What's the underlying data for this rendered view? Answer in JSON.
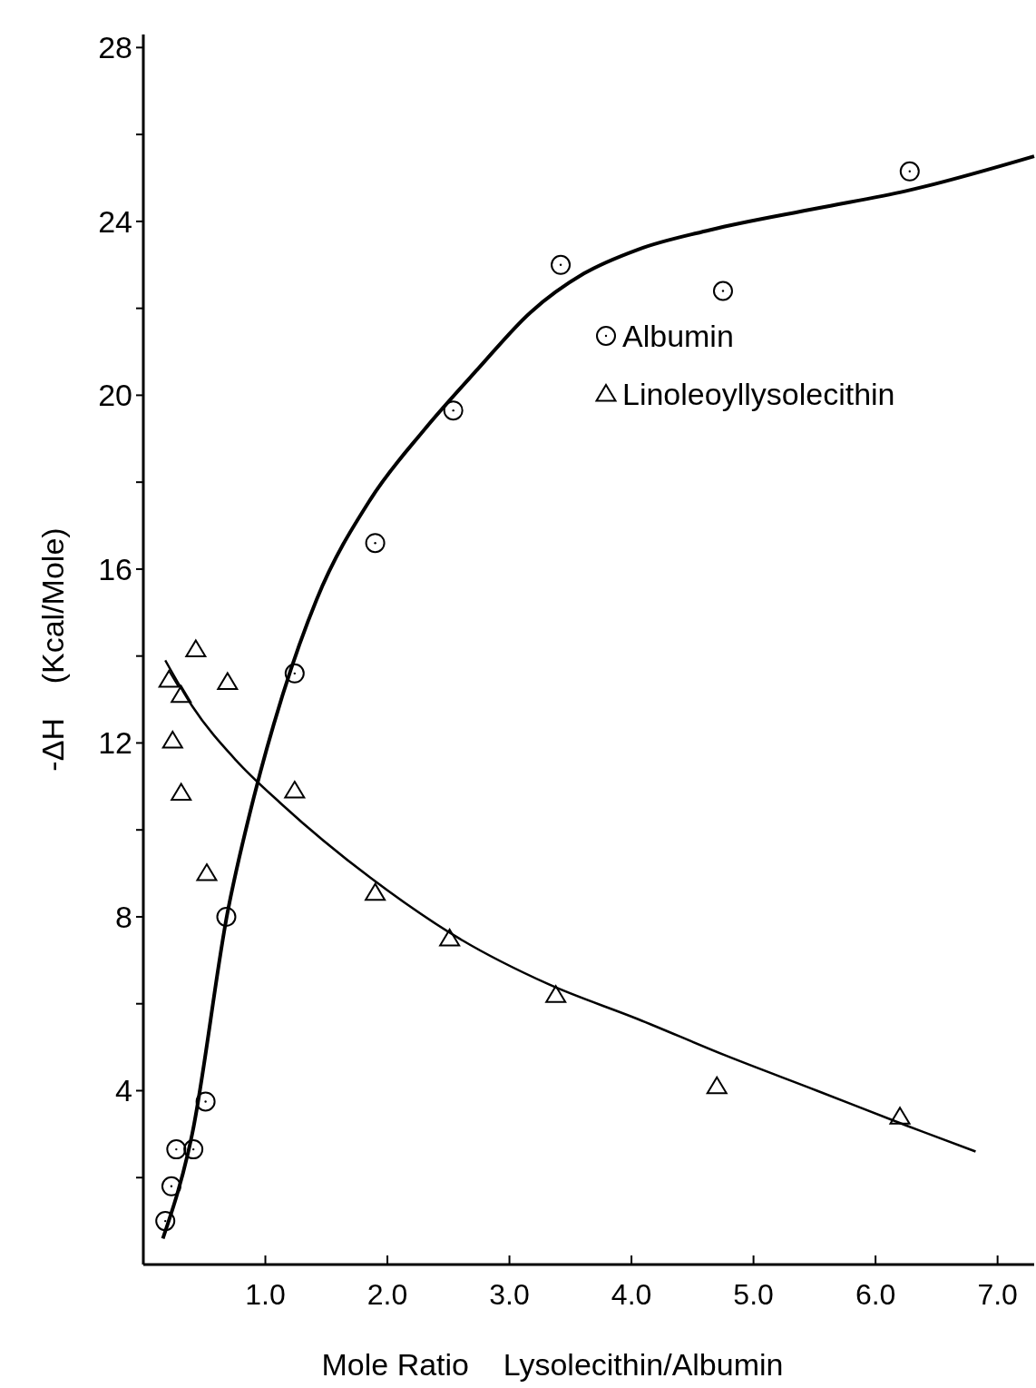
{
  "chart_data": {
    "type": "scatter",
    "xlabel": "Mole Ratio    Lysolecithin/Albumin",
    "ylabel": "-ΔH    (Kcal/Mole)",
    "xlim": [
      0,
      7.3
    ],
    "ylim": [
      0,
      28.3
    ],
    "xticks": [
      {
        "value": 1,
        "label": "1.0"
      },
      {
        "value": 2,
        "label": "2.0"
      },
      {
        "value": 3,
        "label": "3.0"
      },
      {
        "value": 4,
        "label": "4.0"
      },
      {
        "value": 5,
        "label": "5.0"
      },
      {
        "value": 6,
        "label": "6.0"
      },
      {
        "value": 7,
        "label": "7.0"
      }
    ],
    "yticks": [
      {
        "value": 2,
        "label": null
      },
      4,
      {
        "value": 6,
        "label": null
      },
      8,
      {
        "value": 10,
        "label": null
      },
      12,
      {
        "value": 14,
        "label": null
      },
      16,
      {
        "value": 18,
        "label": null
      },
      20,
      {
        "value": 22,
        "label": null
      },
      24,
      {
        "value": 26,
        "label": null
      },
      28
    ],
    "grid": false,
    "legend": "top right",
    "series": [
      {
        "name": "Albumin",
        "color": "#000000",
        "marker": "circle",
        "x": [
          0.18,
          0.23,
          0.27,
          0.41,
          0.51,
          0.68,
          1.24,
          1.9,
          2.54,
          3.42,
          4.75,
          6.28
        ],
        "values": [
          1.0,
          1.8,
          2.65,
          2.65,
          3.75,
          8.0,
          13.6,
          16.6,
          19.65,
          23.0,
          22.4,
          25.15
        ]
      },
      {
        "name": "Linoleoyllysolecithin",
        "color": "#000000",
        "marker": "triangle",
        "x": [
          0.21,
          0.43,
          0.31,
          0.24,
          0.31,
          0.52,
          0.69,
          1.24,
          1.9,
          2.51,
          3.38,
          4.7,
          6.2
        ],
        "values": [
          13.45,
          14.15,
          13.1,
          12.05,
          10.85,
          9.0,
          13.4,
          10.9,
          8.55,
          7.5,
          6.2,
          4.1,
          3.4
        ]
      },
      {
        "type": "line",
        "color": "#000000",
        "line_style": "solid",
        "x": [
          0.16,
          0.4,
          0.69,
          0.91,
          1.13,
          1.42,
          1.86,
          2.3,
          2.74,
          3.17,
          3.61,
          4.05,
          4.64,
          5.52,
          6.25,
          7.3
        ],
        "values": [
          0.6,
          3.0,
          8.1,
          10.8,
          13.0,
          15.3,
          17.6,
          19.2,
          20.6,
          21.9,
          22.8,
          23.35,
          23.8,
          24.3,
          24.7,
          25.5
        ]
      },
      {
        "type": "line",
        "color": "#000000",
        "line_style": "solid",
        "x": [
          0.18,
          0.4,
          0.76,
          1.13,
          1.86,
          2.59,
          3.32,
          4.05,
          4.78,
          5.52,
          6.25,
          6.82
        ],
        "values": [
          13.9,
          12.85,
          11.6,
          10.6,
          8.9,
          7.5,
          6.45,
          5.65,
          4.8,
          4.0,
          3.2,
          2.6
        ]
      }
    ]
  }
}
